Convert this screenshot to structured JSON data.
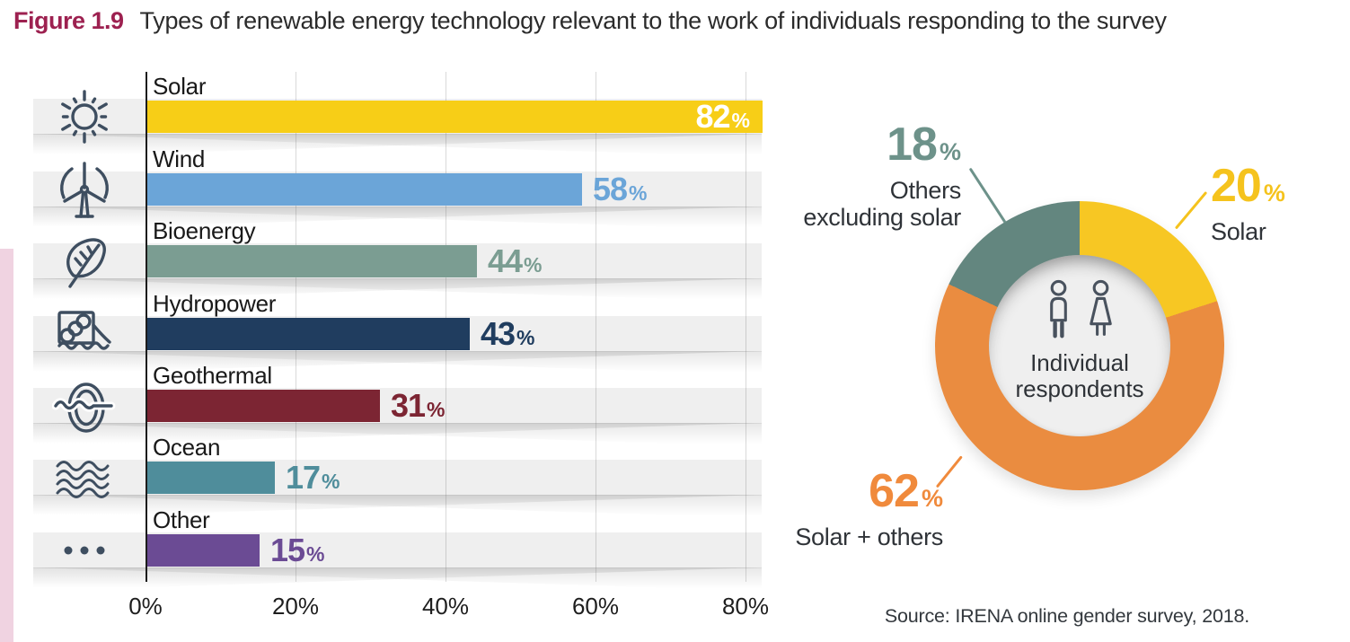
{
  "page": {
    "figure_label": "Figure 1.9",
    "figure_label_color": "#9D2150",
    "title": "Types of renewable energy technology relevant to the work of individuals responding to the survey",
    "source": "Source: IRENA online gender survey, 2018.",
    "accent_strip_color": "#F0D3E1"
  },
  "chart_data": [
    {
      "type": "bar",
      "orientation": "horizontal",
      "title": "Types of renewable energy technology relevant to the work of individuals responding to the survey",
      "categories": [
        "Solar",
        "Wind",
        "Bioenergy",
        "Hydropower",
        "Geothermal",
        "Ocean",
        "Other"
      ],
      "values": [
        82,
        58,
        44,
        43,
        31,
        17,
        15
      ],
      "unit": "%",
      "colors": [
        "#F7CE17",
        "#6BA5D8",
        "#7B9D92",
        "#203D5F",
        "#7C2533",
        "#4F8D9B",
        "#6B4B94"
      ],
      "icons": [
        "sun-icon",
        "wind-turbine-icon",
        "leaf-icon",
        "hydropower-dam-icon",
        "geothermal-icon",
        "ocean-waves-icon",
        "more-dots-icon"
      ],
      "value_inside": [
        true,
        false,
        false,
        false,
        false,
        false,
        false
      ],
      "x_ticks": [
        "0%",
        "20%",
        "40%",
        "60%",
        "80%"
      ],
      "xlim": [
        0,
        82
      ],
      "grid": true
    },
    {
      "type": "pie",
      "subtype": "donut",
      "unit": "%",
      "slices": [
        {
          "label": "Solar",
          "value": 20,
          "color": "#F7C723",
          "label_color": "#F5C31D"
        },
        {
          "label": "Solar + others",
          "value": 62,
          "color": "#EA8C40",
          "label_color": "#F08A3C"
        },
        {
          "label": "Others excluding solar",
          "value": 18,
          "color": "#63867F",
          "label_color": "#6D928A",
          "label_lines": [
            "Others",
            "excluding solar"
          ]
        }
      ],
      "center_icons": [
        "man-icon",
        "woman-icon"
      ],
      "center_lines": [
        "Individual",
        "respondents"
      ],
      "legend_position": "callouts"
    }
  ]
}
